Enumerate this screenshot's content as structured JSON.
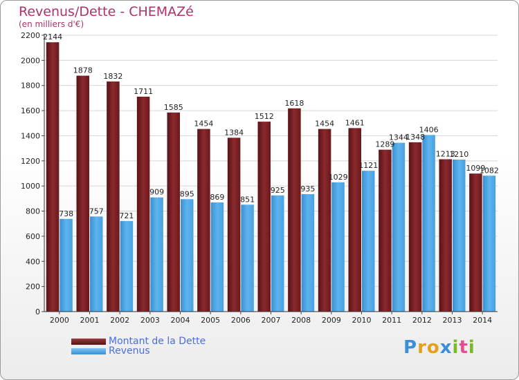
{
  "header": {
    "title": "Revenus/Dette - CHEMAZé",
    "subtitle": "(en milliers d'€)"
  },
  "chart_data": {
    "type": "bar",
    "categories": [
      "2000",
      "2001",
      "2002",
      "2003",
      "2004",
      "2005",
      "2006",
      "2007",
      "2008",
      "2009",
      "2010",
      "2011",
      "2012",
      "2013",
      "2014"
    ],
    "series": [
      {
        "name": "Montant de la Dette",
        "color": "#7a1e22",
        "values": [
          2144,
          1878,
          1832,
          1711,
          1585,
          1454,
          1384,
          1512,
          1618,
          1454,
          1461,
          1289,
          1348,
          1213,
          1099
        ]
      },
      {
        "name": "Revenus",
        "color": "#4aa3e2",
        "values": [
          738,
          757,
          721,
          909,
          895,
          869,
          851,
          925,
          935,
          1029,
          1121,
          1344,
          1406,
          1210,
          1082
        ]
      }
    ],
    "ylim": [
      0,
      2200
    ],
    "yticks": [
      0,
      200,
      400,
      600,
      800,
      1000,
      1200,
      1400,
      1600,
      1800,
      2000,
      2200
    ],
    "grid": true,
    "legend_position": "bottom-left"
  },
  "logo": {
    "letters": [
      "P",
      "r",
      "o",
      "x",
      "i",
      "t",
      "i"
    ],
    "colors": [
      "#3a8fd8",
      "#e2a020",
      "#e2a020",
      "#3a8fd8",
      "#7ab828",
      "#e05090",
      "#7ab828"
    ]
  }
}
